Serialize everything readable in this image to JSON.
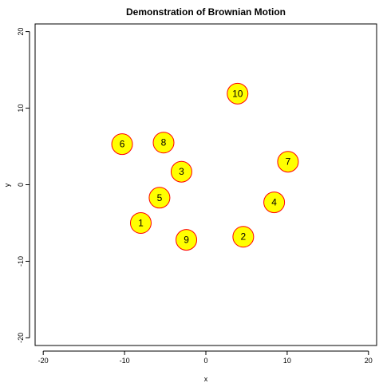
{
  "chart_data": {
    "type": "scatter",
    "title": "Demonstration of Brownian Motion",
    "xlabel": "x",
    "ylabel": "y",
    "xlim": [
      -21,
      21
    ],
    "ylim": [
      -21,
      21
    ],
    "xticks": [
      -20,
      -10,
      0,
      10,
      20
    ],
    "yticks": [
      -20,
      -10,
      0,
      10,
      20
    ],
    "tick_labels_x": [
      "-20",
      "-10",
      "0",
      "10",
      "20"
    ],
    "tick_labels_y": [
      "-20",
      "-10",
      "0",
      "10",
      "20"
    ],
    "grid": false,
    "marker_fill": "#ffff00",
    "marker_stroke": "#ff0000",
    "points": [
      {
        "label": "1",
        "x": -8.0,
        "y": -5.0
      },
      {
        "label": "2",
        "x": 4.6,
        "y": -6.8
      },
      {
        "label": "3",
        "x": -3.0,
        "y": 1.7
      },
      {
        "label": "4",
        "x": 8.4,
        "y": -2.3
      },
      {
        "label": "5",
        "x": -5.7,
        "y": -1.7
      },
      {
        "label": "6",
        "x": -10.3,
        "y": 5.3
      },
      {
        "label": "7",
        "x": 10.1,
        "y": 3.0
      },
      {
        "label": "8",
        "x": -5.2,
        "y": 5.5
      },
      {
        "label": "9",
        "x": -2.4,
        "y": -7.2
      },
      {
        "label": "10",
        "x": 3.9,
        "y": 11.9
      }
    ]
  }
}
